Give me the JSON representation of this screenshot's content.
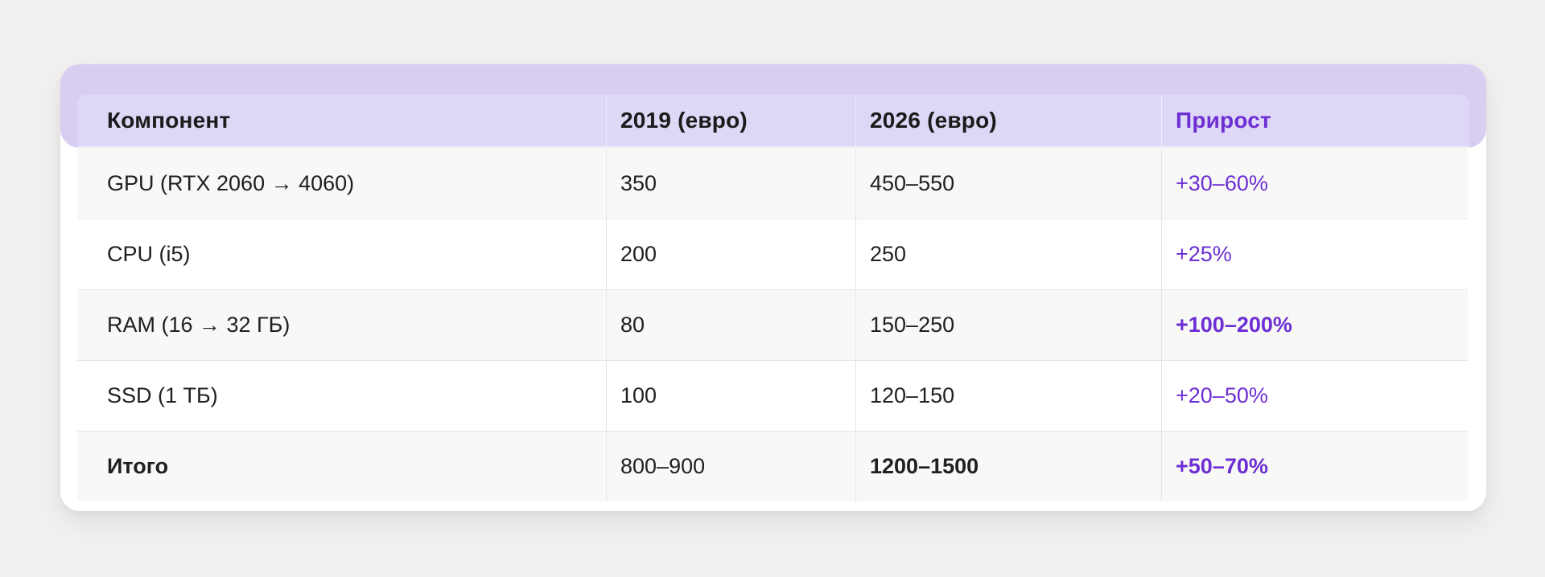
{
  "table": {
    "accent_color": "#6d2fd4",
    "header_band_color": "#d7cef2",
    "columns": [
      {
        "label": "Компонент"
      },
      {
        "label": "2019 (евро)"
      },
      {
        "label": "2026 (евро)"
      },
      {
        "label": "Прирост"
      }
    ],
    "rows": [
      {
        "component": "GPU (RTX 2060 → 4060)",
        "price_2019": "350",
        "price_2026": "450–550",
        "growth": "+30–60%"
      },
      {
        "component": "CPU (i5)",
        "price_2019": "200",
        "price_2026": "250",
        "growth": "+25%"
      },
      {
        "component": "RAM (16 → 32 ГБ)",
        "price_2019": "80",
        "price_2026": "150–250",
        "growth": "+100–200%"
      },
      {
        "component": "SSD (1 ТБ)",
        "price_2019": "100",
        "price_2026": "120–150",
        "growth": "+20–50%"
      },
      {
        "component": "Итого",
        "price_2019": "800–900",
        "price_2026": "1200–1500",
        "growth": "+50–70%"
      }
    ]
  },
  "chart_data": {
    "type": "table",
    "title": "",
    "columns": [
      "Компонент",
      "2019 (евро)",
      "2026 (евро)",
      "Прирост"
    ],
    "rows": [
      [
        "GPU (RTX 2060 → 4060)",
        "350",
        "450–550",
        "+30–60%"
      ],
      [
        "CPU (i5)",
        "200",
        "250",
        "+25%"
      ],
      [
        "RAM (16 → 32 ГБ)",
        "80",
        "150–250",
        "+100–200%"
      ],
      [
        "SSD (1 ТБ)",
        "100",
        "120–150",
        "+20–50%"
      ],
      [
        "Итого",
        "800–900",
        "1200–1500",
        "+50–70%"
      ]
    ]
  }
}
